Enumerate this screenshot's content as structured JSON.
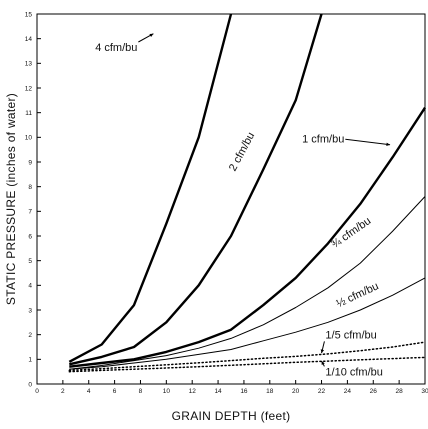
{
  "chart_data": {
    "type": "line",
    "xlabel": "GRAIN DEPTH (feet)",
    "ylabel": "STATIC PRESSURE (inches of water)",
    "xlim": [
      0,
      30
    ],
    "ylim": [
      0,
      15
    ],
    "x_ticks": [
      0,
      2,
      4,
      6,
      8,
      10,
      12,
      14,
      16,
      18,
      20,
      22,
      24,
      26,
      28,
      30
    ],
    "y_ticks": [
      0,
      1,
      2,
      3,
      4,
      5,
      6,
      7,
      8,
      9,
      10,
      11,
      12,
      13,
      14,
      15
    ],
    "grid": false,
    "series": [
      {
        "name": "4 cfm/bu",
        "style": "thick-solid",
        "x": [
          2.5,
          5,
          7.5,
          10,
          12.5,
          15
        ],
        "y": [
          0.9,
          1.6,
          3.2,
          6.5,
          10.0,
          15.0
        ]
      },
      {
        "name": "2 cfm/bu",
        "style": "thick-solid",
        "x": [
          2.5,
          5,
          7.5,
          10,
          12.5,
          15,
          17.5,
          20,
          22
        ],
        "y": [
          0.8,
          1.1,
          1.5,
          2.5,
          4.0,
          6.0,
          8.7,
          11.5,
          15.0
        ]
      },
      {
        "name": "1 cfm/bu",
        "style": "thick-solid",
        "x": [
          2.5,
          5,
          7.5,
          10,
          12.5,
          15,
          17.5,
          20,
          22.5,
          25,
          27.5,
          30
        ],
        "y": [
          0.7,
          0.85,
          1.0,
          1.3,
          1.7,
          2.2,
          3.2,
          4.3,
          5.7,
          7.3,
          9.2,
          11.2
        ]
      },
      {
        "name": "¾ cfm/bu",
        "style": "thin-solid",
        "x": [
          2.5,
          5,
          7.5,
          10,
          12.5,
          15,
          17.5,
          20,
          22.5,
          25,
          27.5,
          30
        ],
        "y": [
          0.6,
          0.75,
          0.95,
          1.15,
          1.45,
          1.85,
          2.4,
          3.1,
          3.9,
          4.9,
          6.2,
          7.6
        ]
      },
      {
        "name": "½ cfm/bu",
        "style": "thin-solid",
        "x": [
          2.5,
          5,
          7.5,
          10,
          12.5,
          15,
          17.5,
          20,
          22.5,
          25,
          27.5,
          30
        ],
        "y": [
          0.6,
          0.7,
          0.85,
          1.0,
          1.2,
          1.4,
          1.75,
          2.1,
          2.5,
          3.0,
          3.6,
          4.3
        ]
      },
      {
        "name": "1/5 cfm/bu",
        "style": "dotted",
        "x": [
          2.5,
          5,
          7.5,
          10,
          12.5,
          15,
          17.5,
          20,
          22.5,
          25,
          27.5,
          30
        ],
        "y": [
          0.55,
          0.62,
          0.7,
          0.78,
          0.86,
          0.95,
          1.04,
          1.12,
          1.22,
          1.35,
          1.5,
          1.7
        ]
      },
      {
        "name": "1/10 cfm/bu",
        "style": "dotted",
        "x": [
          2.5,
          5,
          7.5,
          10,
          12.5,
          15,
          17.5,
          20,
          22.5,
          25,
          27.5,
          30
        ],
        "y": [
          0.5,
          0.55,
          0.6,
          0.65,
          0.7,
          0.76,
          0.82,
          0.88,
          0.93,
          0.98,
          1.03,
          1.08
        ]
      }
    ],
    "annotations": [
      {
        "text": "4 cfm/bu",
        "x": 4.5,
        "y": 13.5,
        "rotate": 0,
        "arrow_to": [
          9.0,
          14.2
        ]
      },
      {
        "text": "2 cfm/bu",
        "x": 15.3,
        "y": 8.6,
        "rotate": -62
      },
      {
        "text": "1 cfm/bu",
        "x": 20.5,
        "y": 9.8,
        "rotate": 0,
        "arrow_to": [
          27.3,
          9.7
        ]
      },
      {
        "text": "¾ cfm/bu",
        "x": 23.0,
        "y": 5.5,
        "rotate": -35
      },
      {
        "text": "½ cfm/bu",
        "x": 23.3,
        "y": 3.1,
        "rotate": -25
      },
      {
        "text": "1/5 cfm/bu",
        "x": 22.3,
        "y": 1.85,
        "rotate": 0,
        "arrow_to": [
          22.0,
          1.25
        ]
      },
      {
        "text": "1/10 cfm/bu",
        "x": 22.3,
        "y": 0.35,
        "rotate": 0,
        "arrow_to": [
          22.0,
          0.93
        ]
      }
    ]
  }
}
